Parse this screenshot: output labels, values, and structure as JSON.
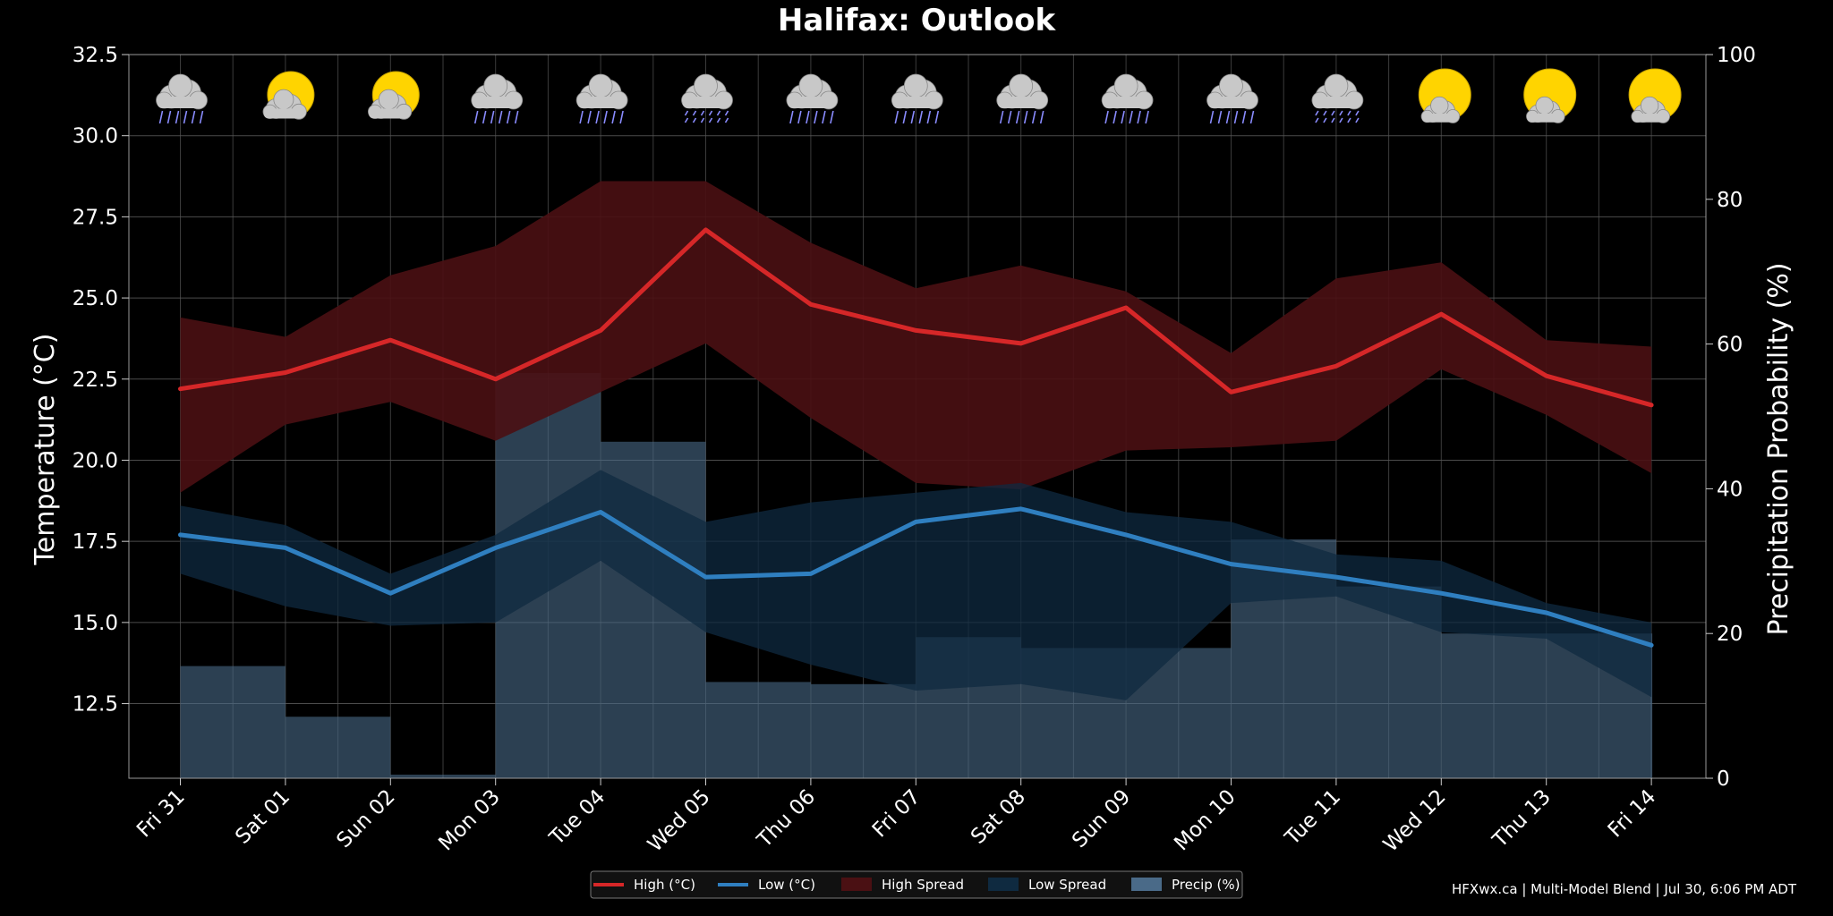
{
  "chart_data": {
    "type": "line",
    "title": "Halifax: Outlook",
    "ylabel": "Temperature (°C)",
    "y2label": "Precipitation Probability (%)",
    "categories": [
      "Fri 31",
      "Sat 01",
      "Sun 02",
      "Mon 03",
      "Tue 04",
      "Wed 05",
      "Thu 06",
      "Fri 07",
      "Sat 08",
      "Sun 09",
      "Mon 10",
      "Tue 11",
      "Wed 12",
      "Thu 13",
      "Fri 14"
    ],
    "ylim": [
      10.2,
      32.5
    ],
    "y2lim": [
      0,
      100
    ],
    "yticks": [
      "32.5",
      "30.0",
      "27.5",
      "25.0",
      "22.5",
      "20.0",
      "17.5",
      "15.0",
      "12.5"
    ],
    "y2ticks": [
      "100",
      "80",
      "60",
      "40",
      "20",
      "0"
    ],
    "grid": true,
    "legend_position": "bottom-center",
    "weather_icons": [
      "rain",
      "partly-cloudy",
      "partly-cloudy",
      "rain",
      "rain",
      "heavy-rain",
      "rain",
      "rain",
      "rain",
      "rain",
      "rain",
      "heavy-rain",
      "partly-sunny",
      "partly-sunny",
      "partly-sunny"
    ],
    "colors": {
      "background": "#000000",
      "high": "#d62728",
      "high_spread": "#4a1013",
      "low": "#2f7fc0",
      "low_spread": "#0f2a40",
      "precip": "#4a6a88",
      "grid": "#555555",
      "sun": "#ffd400",
      "cloud": "#c8c8c8",
      "rain": "#8a8cff"
    },
    "series": [
      {
        "name": "High (°C)",
        "values": [
          22.2,
          22.7,
          23.7,
          22.5,
          24.0,
          27.1,
          24.8,
          24.0,
          23.6,
          24.7,
          22.1,
          22.9,
          24.5,
          22.6,
          21.7
        ]
      },
      {
        "name": "Low (°C)",
        "values": [
          17.7,
          17.3,
          15.9,
          17.3,
          18.4,
          16.4,
          16.5,
          18.1,
          18.5,
          17.7,
          16.8,
          16.4,
          15.9,
          15.3,
          14.3
        ]
      },
      {
        "name": "High Spread",
        "upper": [
          24.4,
          23.8,
          25.7,
          26.6,
          28.6,
          28.6,
          26.7,
          25.3,
          26.0,
          25.2,
          23.3,
          25.6,
          26.1,
          23.7,
          23.5
        ],
        "lower": [
          19.0,
          21.1,
          21.8,
          20.6,
          22.1,
          23.6,
          21.3,
          19.3,
          19.1,
          20.3,
          20.4,
          20.6,
          22.8,
          21.4,
          19.6
        ]
      },
      {
        "name": "Low Spread",
        "upper": [
          18.6,
          18.0,
          16.5,
          17.7,
          19.7,
          18.1,
          18.7,
          19.0,
          19.3,
          18.4,
          18.1,
          17.1,
          16.9,
          15.6,
          15.0
        ],
        "lower": [
          16.5,
          15.5,
          14.9,
          15.0,
          16.9,
          14.7,
          13.7,
          12.9,
          13.1,
          12.6,
          15.6,
          15.8,
          14.7,
          14.5,
          12.7
        ]
      },
      {
        "name": "Precip (%)",
        "values": [
          15.5,
          8.5,
          0.5,
          56,
          46.5,
          13.3,
          13,
          19.5,
          18,
          18,
          33,
          26.5,
          20,
          20,
          20
        ]
      }
    ],
    "credit": "HFXwx.ca | Multi-Model Blend | Jul 30, 6:06 PM ADT"
  }
}
